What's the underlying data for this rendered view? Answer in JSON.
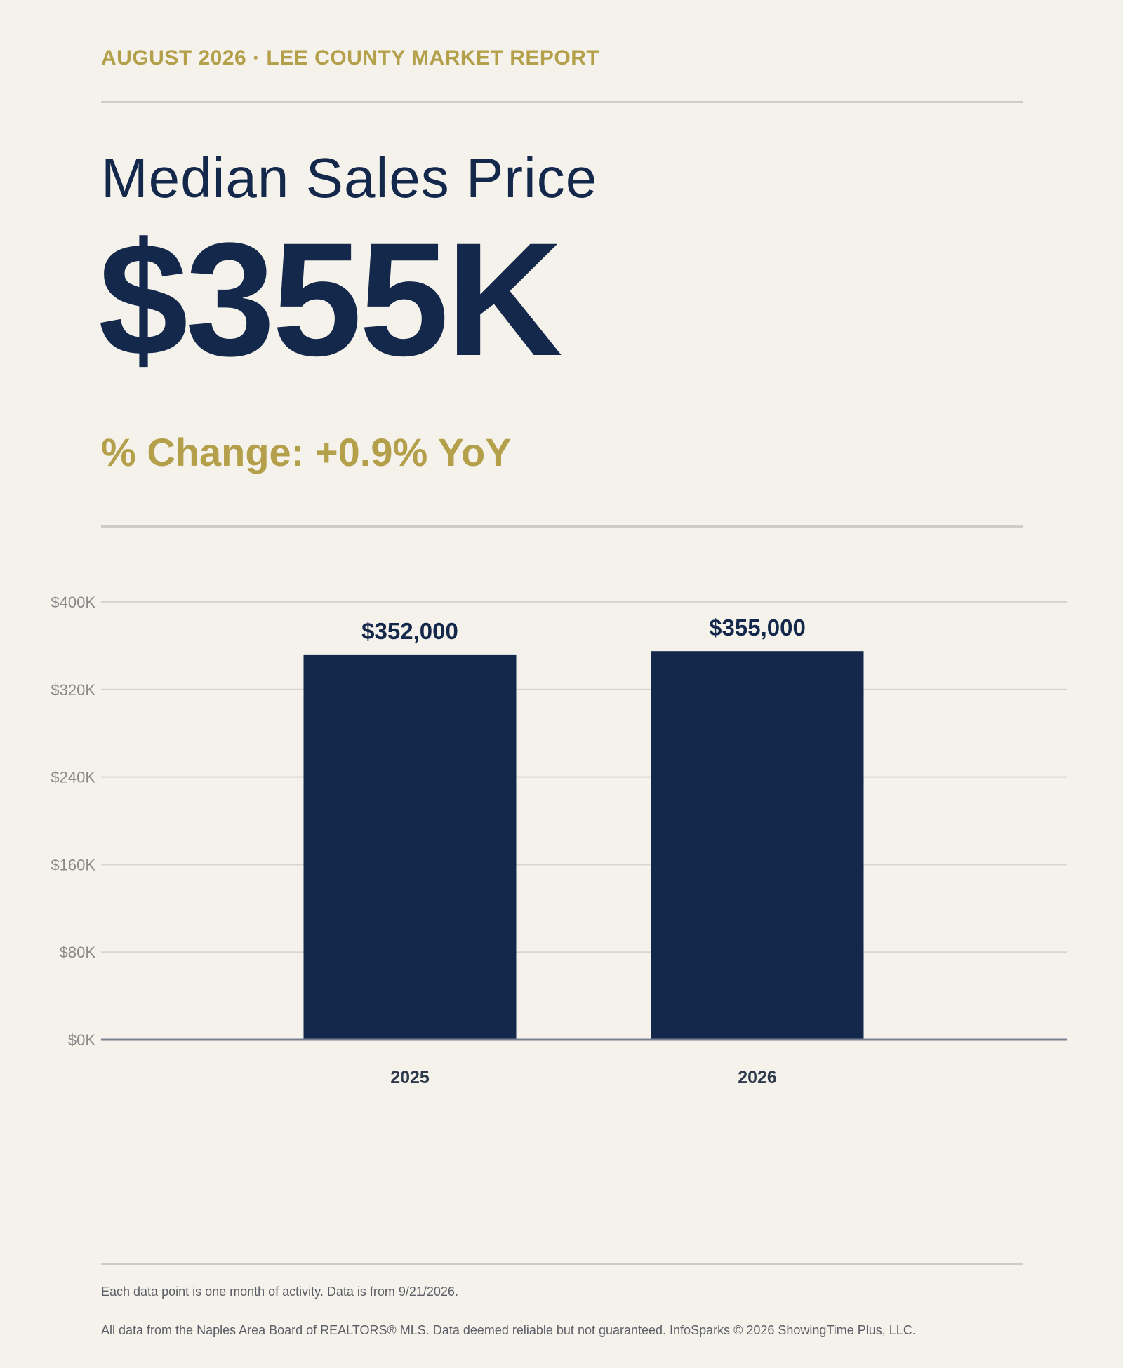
{
  "header": {
    "eyebrow": "AUGUST 2026 · LEE COUNTY MARKET REPORT"
  },
  "metric": {
    "title": "Median Sales Price",
    "value": "$355K",
    "change": "% Change: +0.9% YoY"
  },
  "colors": {
    "navy": "#13284a",
    "gold": "#b4a04a",
    "background": "#f5f2ec",
    "grid": "#d8d5d0",
    "axis": "#7a8090",
    "tick_text": "#8a8a8a"
  },
  "chart_data": {
    "type": "bar",
    "categories": [
      "2025",
      "2026"
    ],
    "values": [
      352000,
      355000
    ],
    "data_labels": [
      "$352,000",
      "$355,000"
    ],
    "ylim": [
      0,
      400000
    ],
    "yticks": [
      0,
      80000,
      160000,
      240000,
      320000,
      400000
    ],
    "ytick_labels": [
      "$0K",
      "$80K",
      "$160K",
      "$240K",
      "$320K",
      "$400K"
    ],
    "title": "",
    "xlabel": "",
    "ylabel": "",
    "grid": true,
    "legend": "none"
  },
  "footer": {
    "note_1": "Each data point is one month of activity. Data is from 9/21/2026.",
    "note_2": "All data from the Naples Area Board of REALTORS® MLS. Data deemed reliable but not guaranteed. InfoSparks © 2026 ShowingTime Plus, LLC."
  }
}
